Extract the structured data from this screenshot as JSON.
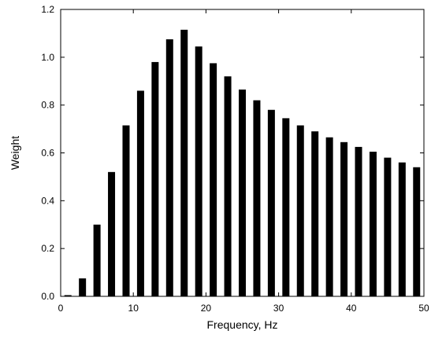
{
  "chart_data": {
    "type": "bar",
    "title": "",
    "xlabel": "Frequency, Hz",
    "ylabel": "Weight",
    "xlim": [
      0,
      50
    ],
    "ylim": [
      0,
      1.2
    ],
    "xticks": [
      0,
      10,
      20,
      30,
      40,
      50
    ],
    "xtick_labels": [
      "0",
      "10",
      "20",
      "30",
      "40",
      "50"
    ],
    "yticks": [
      0,
      0.2,
      0.4,
      0.6,
      0.8,
      1.0,
      1.2
    ],
    "ytick_labels": [
      "0.0",
      "0.2",
      "0.4",
      "0.6",
      "0.8",
      "1.0",
      "1.2"
    ],
    "grid": false,
    "legend": "none",
    "x": [
      1,
      3,
      5,
      7,
      9,
      11,
      13,
      15,
      17,
      19,
      21,
      23,
      25,
      27,
      29,
      31,
      33,
      35,
      37,
      39,
      41,
      43,
      45,
      47,
      49
    ],
    "values": [
      0.005,
      0.075,
      0.3,
      0.52,
      0.715,
      0.86,
      0.98,
      1.075,
      1.115,
      1.045,
      0.975,
      0.92,
      0.865,
      0.82,
      0.78,
      0.745,
      0.715,
      0.69,
      0.665,
      0.645,
      0.625,
      0.605,
      0.58,
      0.56,
      0.54
    ],
    "bar_color": "#000000"
  }
}
